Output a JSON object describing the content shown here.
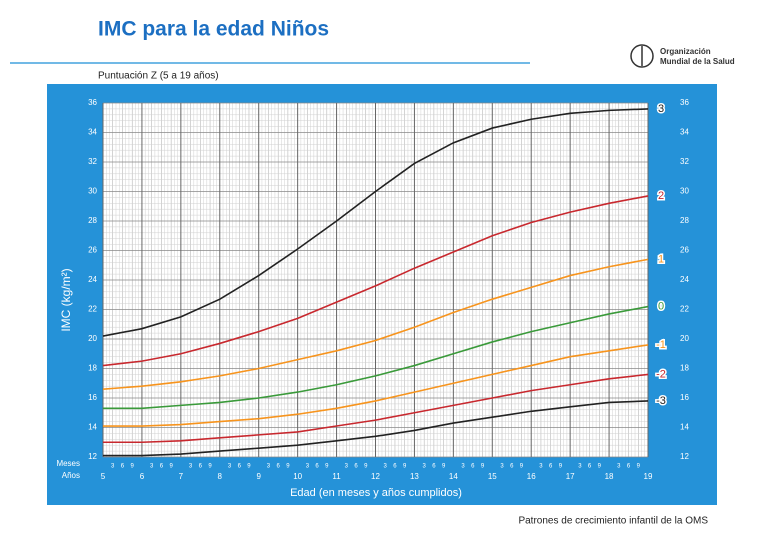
{
  "header": {
    "title": "IMC para la edad Niños",
    "org_name": [
      "Organización",
      "Mundial de la Salud"
    ]
  },
  "subtitle": "Puntuación Z (5 a 19 años)",
  "footer": "Patrones de crecimiento infantil de la OMS",
  "chart_data": {
    "type": "line",
    "x_title": "Edad (en meses y años cumplidos)",
    "y_title": "IMC (kg/m²)",
    "x_unit_labels": [
      "Meses",
      "Años"
    ],
    "month_labels": [
      3,
      6,
      9
    ],
    "x": [
      5,
      6,
      7,
      8,
      9,
      10,
      11,
      12,
      13,
      14,
      15,
      16,
      17,
      18,
      19
    ],
    "xlim": [
      5,
      19
    ],
    "xticks": [
      5,
      6,
      7,
      8,
      9,
      10,
      11,
      12,
      13,
      14,
      15,
      16,
      17,
      18,
      19
    ],
    "ylim": [
      12,
      36
    ],
    "yticks": [
      12,
      14,
      16,
      18,
      20,
      22,
      24,
      26,
      28,
      30,
      32,
      34,
      36
    ],
    "grid": true,
    "series": [
      {
        "name": "3",
        "color": "#222222",
        "values": [
          20.2,
          20.7,
          21.5,
          22.7,
          24.3,
          26.1,
          28.0,
          30.0,
          31.9,
          33.3,
          34.3,
          34.9,
          35.3,
          35.5,
          35.6
        ]
      },
      {
        "name": "2",
        "color": "#c8282e",
        "values": [
          18.2,
          18.5,
          19.0,
          19.7,
          20.5,
          21.4,
          22.5,
          23.6,
          24.8,
          25.9,
          27.0,
          27.9,
          28.6,
          29.2,
          29.7
        ]
      },
      {
        "name": "1",
        "color": "#f7941d",
        "values": [
          16.6,
          16.8,
          17.1,
          17.5,
          18.0,
          18.6,
          19.2,
          19.9,
          20.8,
          21.8,
          22.7,
          23.5,
          24.3,
          24.9,
          25.4
        ]
      },
      {
        "name": "0",
        "color": "#3a9a3a",
        "values": [
          15.3,
          15.3,
          15.5,
          15.7,
          16.0,
          16.4,
          16.9,
          17.5,
          18.2,
          19.0,
          19.8,
          20.5,
          21.1,
          21.7,
          22.2
        ]
      },
      {
        "name": "-1",
        "color": "#f7941d",
        "values": [
          14.1,
          14.1,
          14.2,
          14.4,
          14.6,
          14.9,
          15.3,
          15.8,
          16.4,
          17.0,
          17.6,
          18.2,
          18.8,
          19.2,
          19.6
        ]
      },
      {
        "name": "-2",
        "color": "#c8282e",
        "values": [
          13.0,
          13.0,
          13.1,
          13.3,
          13.5,
          13.7,
          14.1,
          14.5,
          15.0,
          15.5,
          16.0,
          16.5,
          16.9,
          17.3,
          17.6
        ]
      },
      {
        "name": "-3",
        "color": "#222222",
        "values": [
          12.1,
          12.1,
          12.2,
          12.4,
          12.6,
          12.8,
          13.1,
          13.4,
          13.8,
          14.3,
          14.7,
          15.1,
          15.4,
          15.7,
          15.8
        ]
      }
    ]
  }
}
